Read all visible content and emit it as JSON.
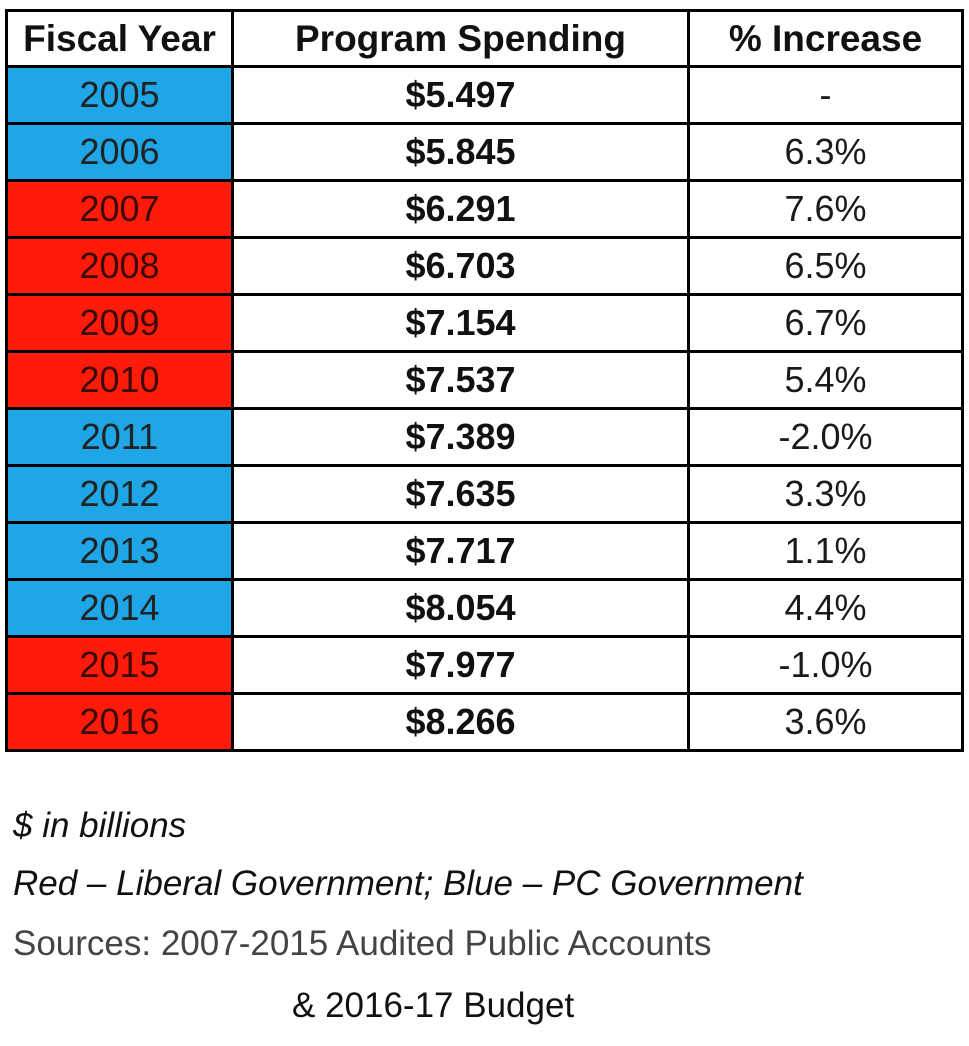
{
  "colors": {
    "liberal_red": "#ff1a0a",
    "pc_blue": "#1ea6e6"
  },
  "chart_data": {
    "type": "table",
    "columns": [
      "Fiscal Year",
      "Program Spending",
      "% Increase"
    ],
    "rows": [
      {
        "year": "2005",
        "spending": "$5.497",
        "increase": "-",
        "government": "pc"
      },
      {
        "year": "2006",
        "spending": "$5.845",
        "increase": "6.3%",
        "government": "pc"
      },
      {
        "year": "2007",
        "spending": "$6.291",
        "increase": "7.6%",
        "government": "liberal"
      },
      {
        "year": "2008",
        "spending": "$6.703",
        "increase": "6.5%",
        "government": "liberal"
      },
      {
        "year": "2009",
        "spending": "$7.154",
        "increase": "6.7%",
        "government": "liberal"
      },
      {
        "year": "2010",
        "spending": "$7.537",
        "increase": "5.4%",
        "government": "liberal"
      },
      {
        "year": "2011",
        "spending": "$7.389",
        "increase": "-2.0%",
        "government": "pc"
      },
      {
        "year": "2012",
        "spending": "$7.635",
        "increase": "3.3%",
        "government": "pc"
      },
      {
        "year": "2013",
        "spending": "$7.717",
        "increase": "1.1%",
        "government": "pc"
      },
      {
        "year": "2014",
        "spending": "$8.054",
        "increase": "4.4%",
        "government": "pc"
      },
      {
        "year": "2015",
        "spending": "$7.977",
        "increase": "-1.0%",
        "government": "liberal"
      },
      {
        "year": "2016",
        "spending": "$8.266",
        "increase": "3.6%",
        "government": "liberal"
      }
    ]
  },
  "notes": {
    "units": "$ in billions",
    "legend": "Red – Liberal Government; Blue – PC Government",
    "sources_line1": "Sources: 2007-2015 Audited Public Accounts",
    "sources_line2": "& 2016-17 Budget"
  }
}
